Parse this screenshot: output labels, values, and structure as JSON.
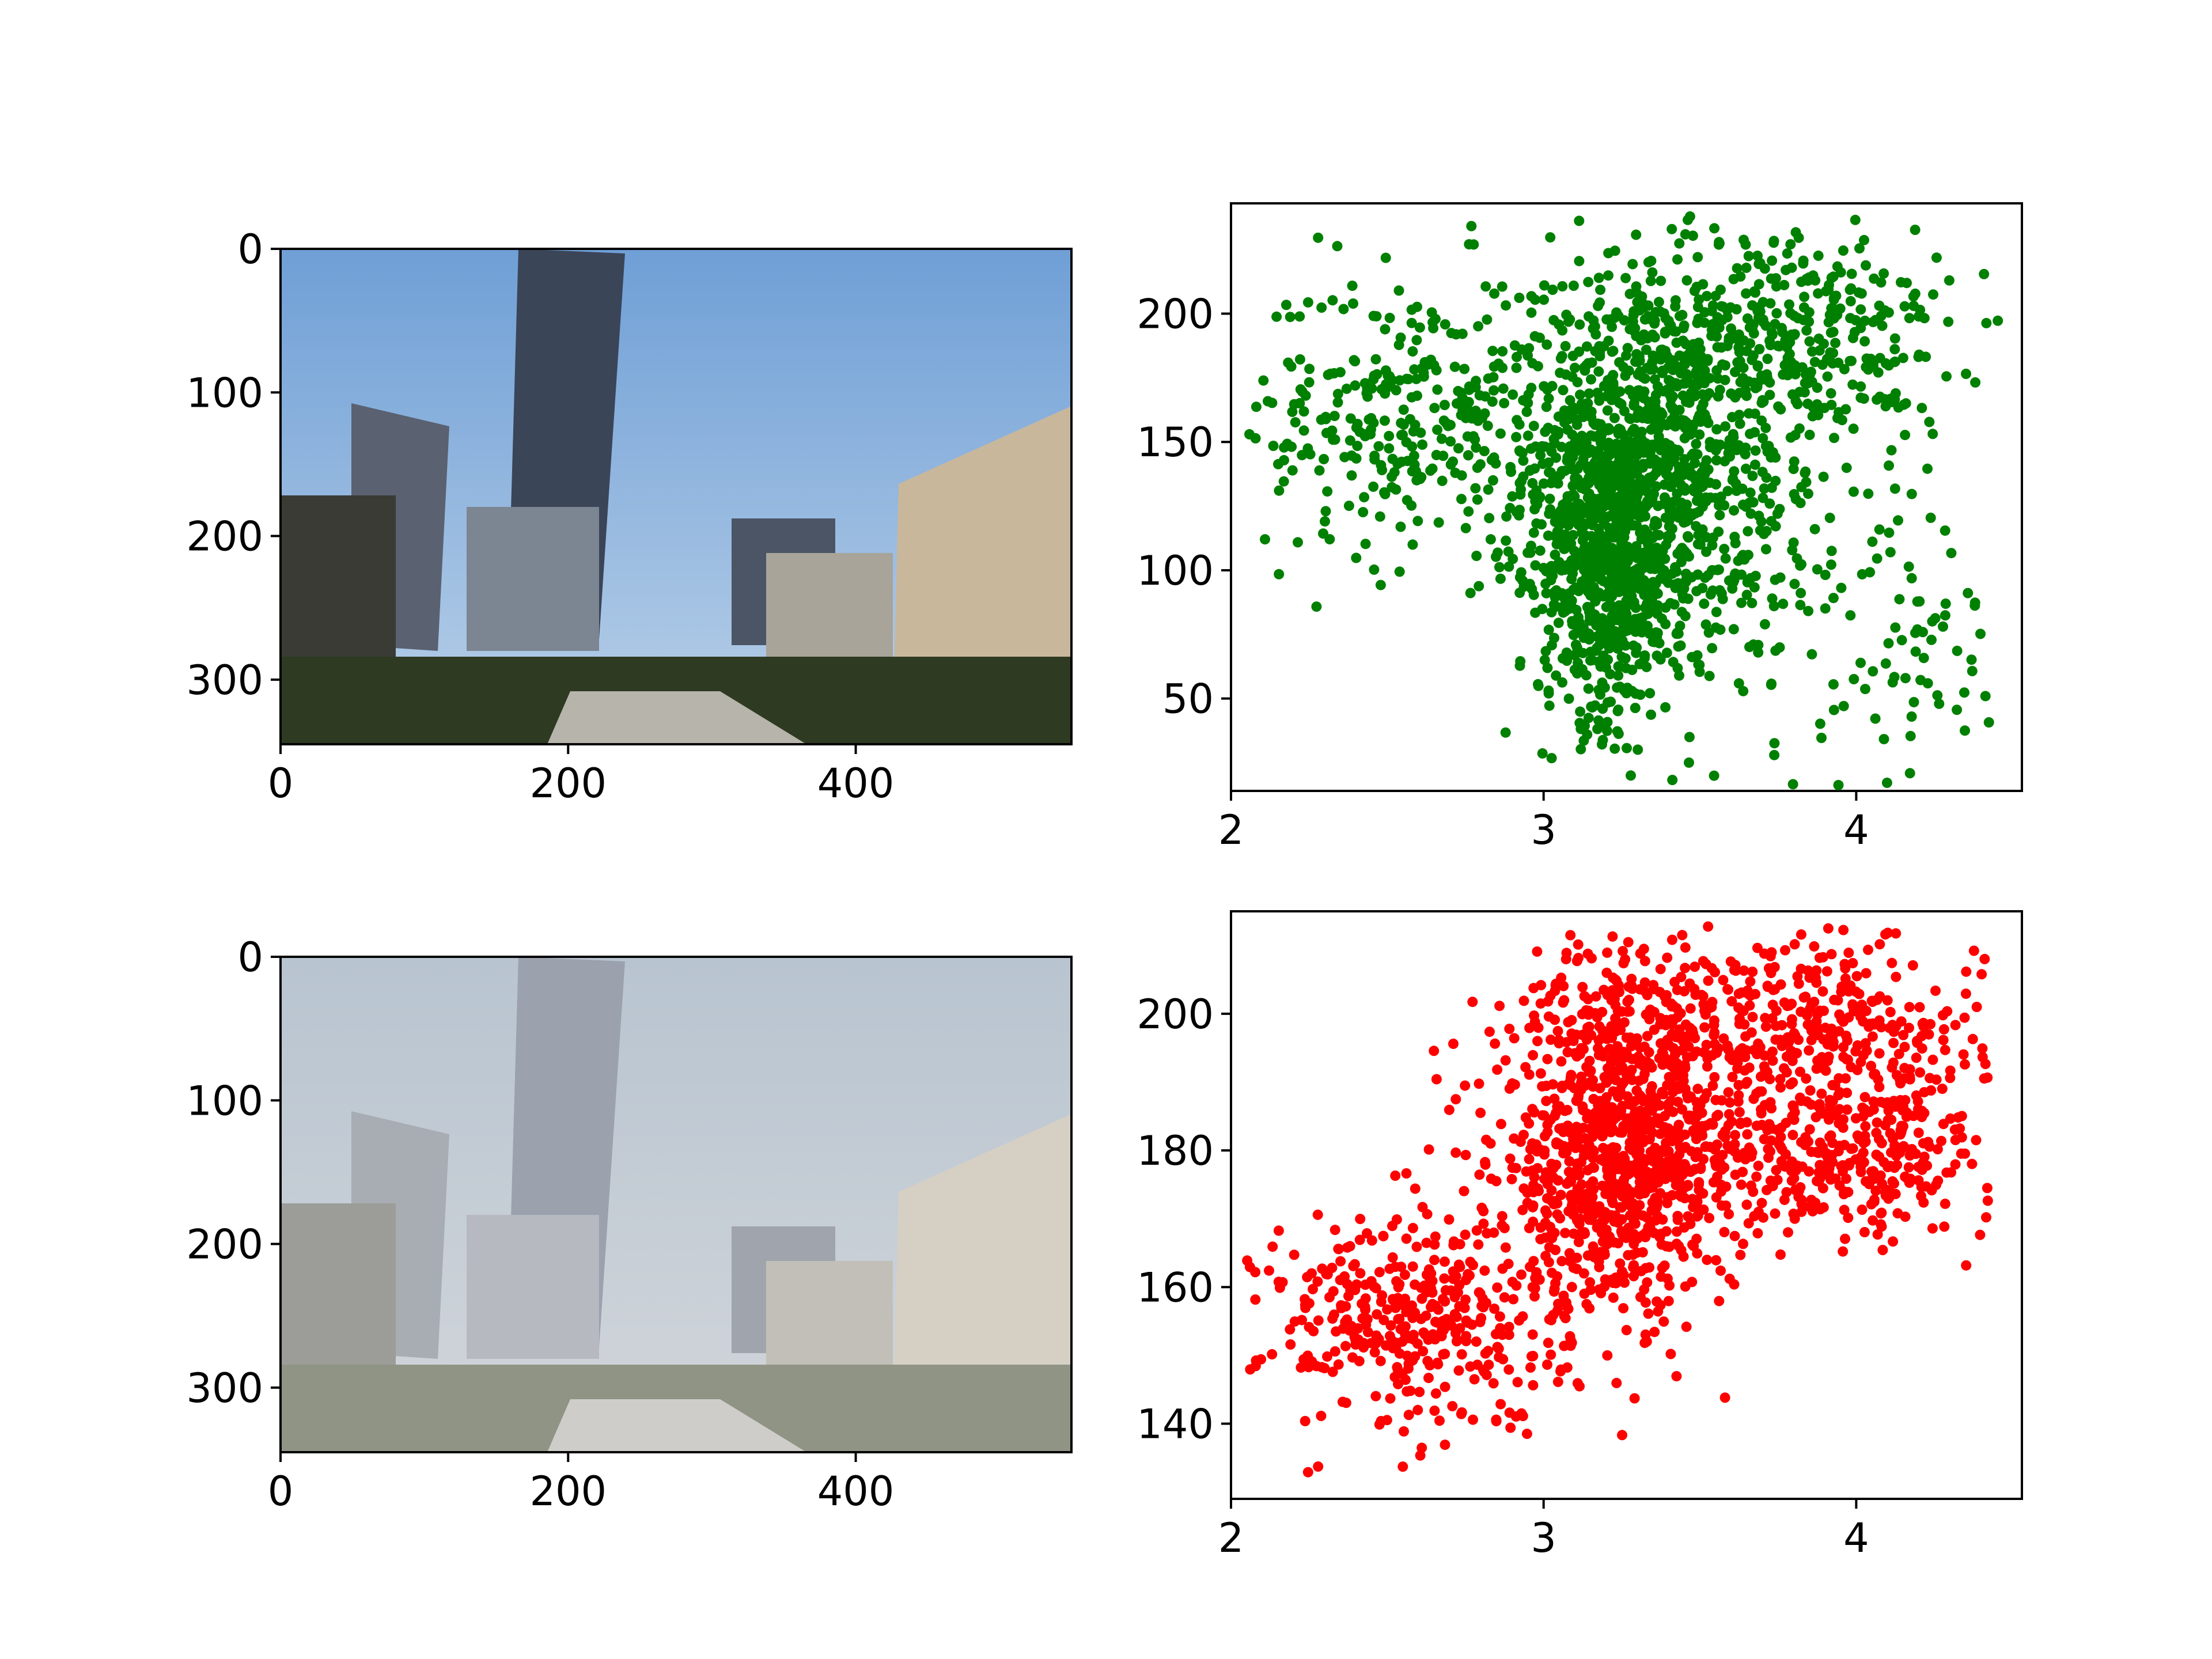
{
  "chart_data": [
    {
      "type": "image",
      "panel": "top-left",
      "description_visible": "city street scene, clear",
      "xlim": [
        0,
        550
      ],
      "ylim": [
        345,
        0
      ],
      "xticks": [
        0,
        200,
        400
      ],
      "yticks": [
        0,
        100,
        200,
        300
      ],
      "tint": "clear"
    },
    {
      "type": "scatter",
      "panel": "top-right",
      "color": "#008000",
      "xlim": [
        2.0,
        4.53
      ],
      "ylim": [
        14,
        243
      ],
      "xticks": [
        2,
        3,
        4
      ],
      "yticks": [
        50,
        100,
        150,
        200
      ],
      "clusters": [
        {
          "cx": 3.3,
          "cy": 140,
          "sx": 0.18,
          "sy": 40,
          "n": 900
        },
        {
          "cx": 3.2,
          "cy": 100,
          "sx": 0.1,
          "sy": 30,
          "n": 500
        },
        {
          "cx": 2.6,
          "cy": 160,
          "sx": 0.28,
          "sy": 28,
          "n": 350
        },
        {
          "cx": 3.8,
          "cy": 190,
          "sx": 0.25,
          "sy": 22,
          "n": 350
        },
        {
          "cx": 4.2,
          "cy": 60,
          "sx": 0.15,
          "sy": 25,
          "n": 60
        },
        {
          "cx": 3.6,
          "cy": 120,
          "sx": 0.3,
          "sy": 40,
          "n": 250
        }
      ]
    },
    {
      "type": "image",
      "panel": "bottom-left",
      "description_visible": "city street scene, hazy",
      "xlim": [
        0,
        550
      ],
      "ylim": [
        345,
        0
      ],
      "xticks": [
        0,
        200,
        400
      ],
      "yticks": [
        0,
        100,
        200,
        300
      ],
      "tint": "hazy"
    },
    {
      "type": "scatter",
      "panel": "bottom-right",
      "color": "#ff0000",
      "xlim": [
        2.0,
        4.53
      ],
      "ylim": [
        129,
        215
      ],
      "xticks": [
        2,
        3,
        4
      ],
      "yticks": [
        140,
        160,
        180,
        200
      ],
      "clusters": [
        {
          "cx": 3.25,
          "cy": 178,
          "sx": 0.2,
          "sy": 10,
          "n": 900
        },
        {
          "cx": 2.6,
          "cy": 155,
          "sx": 0.25,
          "sy": 8,
          "n": 400
        },
        {
          "cx": 3.9,
          "cy": 195,
          "sx": 0.25,
          "sy": 8,
          "n": 400
        },
        {
          "cx": 4.0,
          "cy": 178,
          "sx": 0.22,
          "sy": 5,
          "n": 250
        },
        {
          "cx": 3.3,
          "cy": 200,
          "sx": 0.2,
          "sy": 6,
          "n": 200
        }
      ]
    }
  ]
}
